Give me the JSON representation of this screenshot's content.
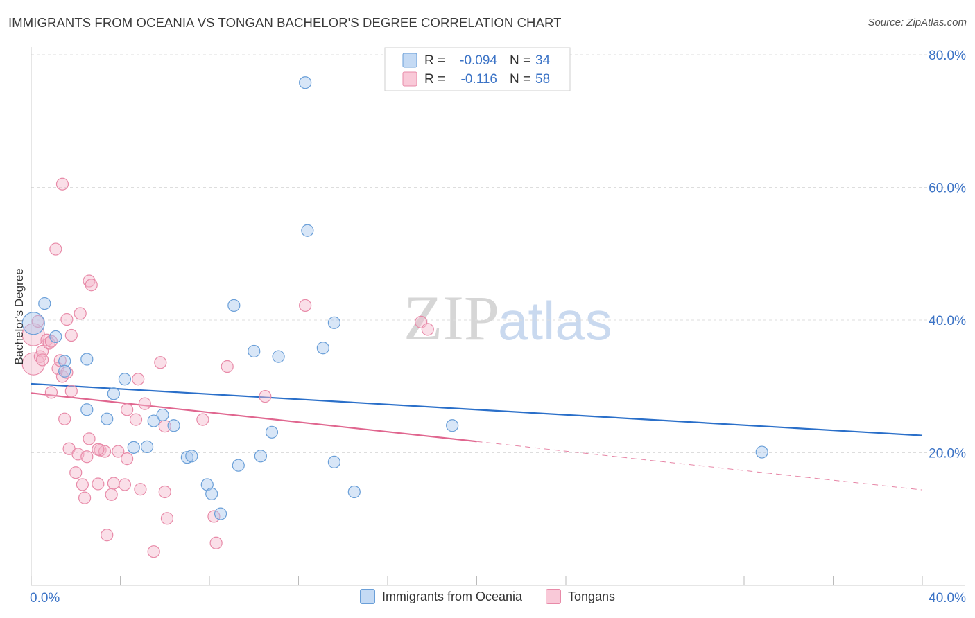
{
  "title": "IMMIGRANTS FROM OCEANIA VS TONGAN BACHELOR'S DEGREE CORRELATION CHART",
  "source": "Source: ZipAtlas.com",
  "watermark": {
    "zip": "ZIP",
    "atlas": "atlas"
  },
  "colors": {
    "blue_fill": "#a9c8ee",
    "blue_stroke": "#6a9fd8",
    "blue_line": "#2a6fc9",
    "pink_fill": "#f5b8cc",
    "pink_stroke": "#e88aa8",
    "pink_line": "#e0668f",
    "axis_label": "#3b73c6",
    "grid": "#dddddd"
  },
  "legend": {
    "blue_r_label": "R = ",
    "blue_r": "-0.094",
    "blue_n_label": "N = ",
    "blue_n": "34",
    "pink_r_label": "R = ",
    "pink_r": "-0.116",
    "pink_n_label": "N = ",
    "pink_n": "58"
  },
  "chart_data": {
    "type": "scatter",
    "title": "IMMIGRANTS FROM OCEANIA VS TONGAN BACHELOR'S DEGREE CORRELATION CHART",
    "xlabel": "",
    "ylabel": "Bachelor's Degree",
    "xlim": [
      0,
      40
    ],
    "ylim": [
      0,
      80
    ],
    "x_tick_labels": [
      "0.0%",
      "40.0%"
    ],
    "y_tick_labels": [
      "20.0%",
      "40.0%",
      "60.0%",
      "80.0%"
    ],
    "y_ticks": [
      20,
      40,
      60,
      80
    ],
    "grid": true,
    "legend_position": "top-center",
    "series": [
      {
        "name": "Immigrants from Oceania",
        "color": "#6a9fd8",
        "trend": {
          "x": [
            0,
            40
          ],
          "y": [
            30.4,
            22.6
          ],
          "dashed_from": null
        },
        "points": [
          {
            "x": 0.1,
            "y": 39.5,
            "big": true
          },
          {
            "x": 0.6,
            "y": 42.5
          },
          {
            "x": 1.1,
            "y": 37.5
          },
          {
            "x": 1.5,
            "y": 33.8
          },
          {
            "x": 1.5,
            "y": 32.3
          },
          {
            "x": 2.5,
            "y": 34.1
          },
          {
            "x": 2.5,
            "y": 26.5
          },
          {
            "x": 3.4,
            "y": 25.1
          },
          {
            "x": 3.7,
            "y": 28.9
          },
          {
            "x": 4.2,
            "y": 31.1
          },
          {
            "x": 4.6,
            "y": 20.8
          },
          {
            "x": 5.2,
            "y": 20.9
          },
          {
            "x": 5.5,
            "y": 24.8
          },
          {
            "x": 5.9,
            "y": 25.7
          },
          {
            "x": 6.4,
            "y": 24.1
          },
          {
            "x": 7.0,
            "y": 19.3
          },
          {
            "x": 7.2,
            "y": 19.5
          },
          {
            "x": 7.9,
            "y": 15.2
          },
          {
            "x": 8.1,
            "y": 13.8
          },
          {
            "x": 8.5,
            "y": 10.8
          },
          {
            "x": 9.1,
            "y": 42.2
          },
          {
            "x": 9.3,
            "y": 18.1
          },
          {
            "x": 10.0,
            "y": 35.3
          },
          {
            "x": 10.3,
            "y": 19.5
          },
          {
            "x": 10.8,
            "y": 23.1
          },
          {
            "x": 11.1,
            "y": 34.5
          },
          {
            "x": 12.3,
            "y": 75.8
          },
          {
            "x": 12.4,
            "y": 53.5
          },
          {
            "x": 13.1,
            "y": 35.8
          },
          {
            "x": 13.6,
            "y": 39.6
          },
          {
            "x": 13.6,
            "y": 18.6
          },
          {
            "x": 14.5,
            "y": 14.1
          },
          {
            "x": 18.9,
            "y": 24.1
          },
          {
            "x": 32.8,
            "y": 20.1
          }
        ]
      },
      {
        "name": "Tongans",
        "color": "#e88aa8",
        "trend": {
          "x": [
            0,
            40
          ],
          "y": [
            29.0,
            14.4
          ],
          "solid_until": 20
        },
        "points": [
          {
            "x": 0.1,
            "y": 37.8,
            "big": true
          },
          {
            "x": 0.1,
            "y": 33.4,
            "big": true
          },
          {
            "x": 0.3,
            "y": 39.8
          },
          {
            "x": 0.4,
            "y": 34.5
          },
          {
            "x": 0.5,
            "y": 35.3
          },
          {
            "x": 0.5,
            "y": 34.0
          },
          {
            "x": 0.7,
            "y": 37.0
          },
          {
            "x": 0.8,
            "y": 36.5
          },
          {
            "x": 0.9,
            "y": 36.8
          },
          {
            "x": 0.9,
            "y": 29.1
          },
          {
            "x": 1.1,
            "y": 50.7
          },
          {
            "x": 1.2,
            "y": 32.7
          },
          {
            "x": 1.3,
            "y": 33.9
          },
          {
            "x": 1.4,
            "y": 60.5
          },
          {
            "x": 1.4,
            "y": 31.5
          },
          {
            "x": 1.5,
            "y": 25.1
          },
          {
            "x": 1.6,
            "y": 32.1
          },
          {
            "x": 1.6,
            "y": 40.1
          },
          {
            "x": 1.7,
            "y": 20.6
          },
          {
            "x": 1.8,
            "y": 37.7
          },
          {
            "x": 1.8,
            "y": 29.3
          },
          {
            "x": 2.0,
            "y": 17.0
          },
          {
            "x": 2.1,
            "y": 19.8
          },
          {
            "x": 2.2,
            "y": 41.0
          },
          {
            "x": 2.3,
            "y": 15.2
          },
          {
            "x": 2.4,
            "y": 13.2
          },
          {
            "x": 2.5,
            "y": 19.4
          },
          {
            "x": 2.6,
            "y": 45.9
          },
          {
            "x": 2.6,
            "y": 22.1
          },
          {
            "x": 2.7,
            "y": 45.3
          },
          {
            "x": 3.0,
            "y": 15.3
          },
          {
            "x": 3.1,
            "y": 20.4
          },
          {
            "x": 3.3,
            "y": 20.2
          },
          {
            "x": 3.4,
            "y": 7.6
          },
          {
            "x": 3.6,
            "y": 13.7
          },
          {
            "x": 3.7,
            "y": 15.4
          },
          {
            "x": 3.9,
            "y": 20.2
          },
          {
            "x": 4.2,
            "y": 15.2
          },
          {
            "x": 4.3,
            "y": 19.1
          },
          {
            "x": 4.3,
            "y": 26.5
          },
          {
            "x": 4.7,
            "y": 25.0
          },
          {
            "x": 4.8,
            "y": 31.1
          },
          {
            "x": 4.9,
            "y": 14.5
          },
          {
            "x": 5.1,
            "y": 27.4
          },
          {
            "x": 5.5,
            "y": 5.1
          },
          {
            "x": 5.8,
            "y": 33.6
          },
          {
            "x": 6.0,
            "y": 24.0
          },
          {
            "x": 6.0,
            "y": 14.1
          },
          {
            "x": 6.1,
            "y": 10.1
          },
          {
            "x": 7.7,
            "y": 25.0
          },
          {
            "x": 8.2,
            "y": 10.4
          },
          {
            "x": 8.3,
            "y": 6.4
          },
          {
            "x": 8.8,
            "y": 33.0
          },
          {
            "x": 10.5,
            "y": 28.5
          },
          {
            "x": 12.3,
            "y": 42.2
          },
          {
            "x": 17.5,
            "y": 39.7
          },
          {
            "x": 17.8,
            "y": 38.6
          },
          {
            "x": 3.0,
            "y": 20.5
          }
        ]
      }
    ]
  }
}
